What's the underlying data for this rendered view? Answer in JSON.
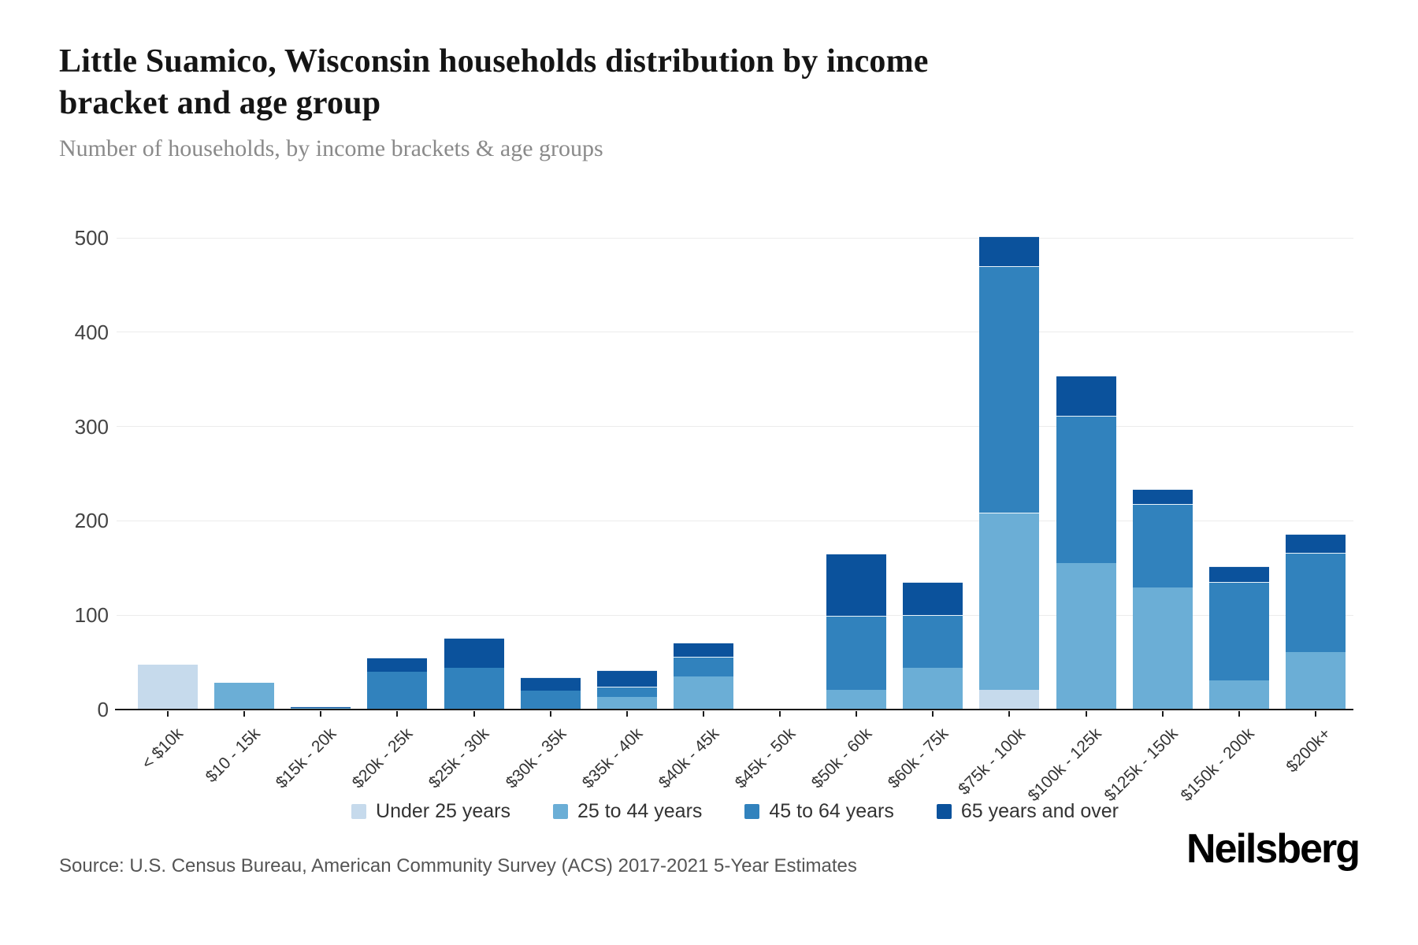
{
  "header": {
    "title_line1": "Little Suamico, Wisconsin households distribution by income",
    "title_line2": "bracket and age group",
    "subtitle": "Number of households, by income brackets & age groups"
  },
  "chart_data": {
    "type": "bar",
    "stacked": true,
    "title": "Little Suamico, Wisconsin households distribution by income bracket and age group",
    "subtitle": "Number of households, by income brackets & age groups",
    "categories": [
      "< $10k",
      "$10 - 15k",
      "$15k - 20k",
      "$20k - 25k",
      "$25k - 30k",
      "$30k - 35k",
      "$35k - 40k",
      "$40k - 45k",
      "$45k - 50k",
      "$50k - 60k",
      "$60k - 75k",
      "$75k - 100k",
      "$100k - 125k",
      "$125k - 150k",
      "$150k - 200k",
      "$200k+"
    ],
    "series": [
      {
        "name": "Under 25 years",
        "color": "#c6daec",
        "values": [
          48,
          0,
          0,
          0,
          0,
          0,
          0,
          0,
          0,
          0,
          0,
          21,
          0,
          0,
          0,
          0
        ]
      },
      {
        "name": "25 to 44 years",
        "color": "#6baed6",
        "values": [
          0,
          28,
          2,
          0,
          0,
          0,
          13,
          35,
          0,
          21,
          44,
          188,
          155,
          129,
          31,
          61
        ]
      },
      {
        "name": "45 to 64 years",
        "color": "#3182bd",
        "values": [
          0,
          0,
          0,
          40,
          44,
          20,
          11,
          21,
          0,
          78,
          56,
          261,
          156,
          89,
          104,
          105
        ]
      },
      {
        "name": "65 years and over",
        "color": "#0b529c",
        "values": [
          0,
          0,
          1,
          15,
          32,
          14,
          18,
          15,
          0,
          66,
          35,
          32,
          43,
          16,
          17,
          20
        ]
      }
    ],
    "xlabel": "",
    "ylabel": "",
    "ylim": [
      0,
      500
    ],
    "yticks": [
      0,
      100,
      200,
      300,
      400,
      500
    ],
    "grid": "horizontal",
    "legend_position": "bottom"
  },
  "footer": {
    "source": "Source: U.S. Census Bureau, American Community Survey (ACS) 2017-2021 5-Year Estimates",
    "brand": "Neilsberg"
  }
}
